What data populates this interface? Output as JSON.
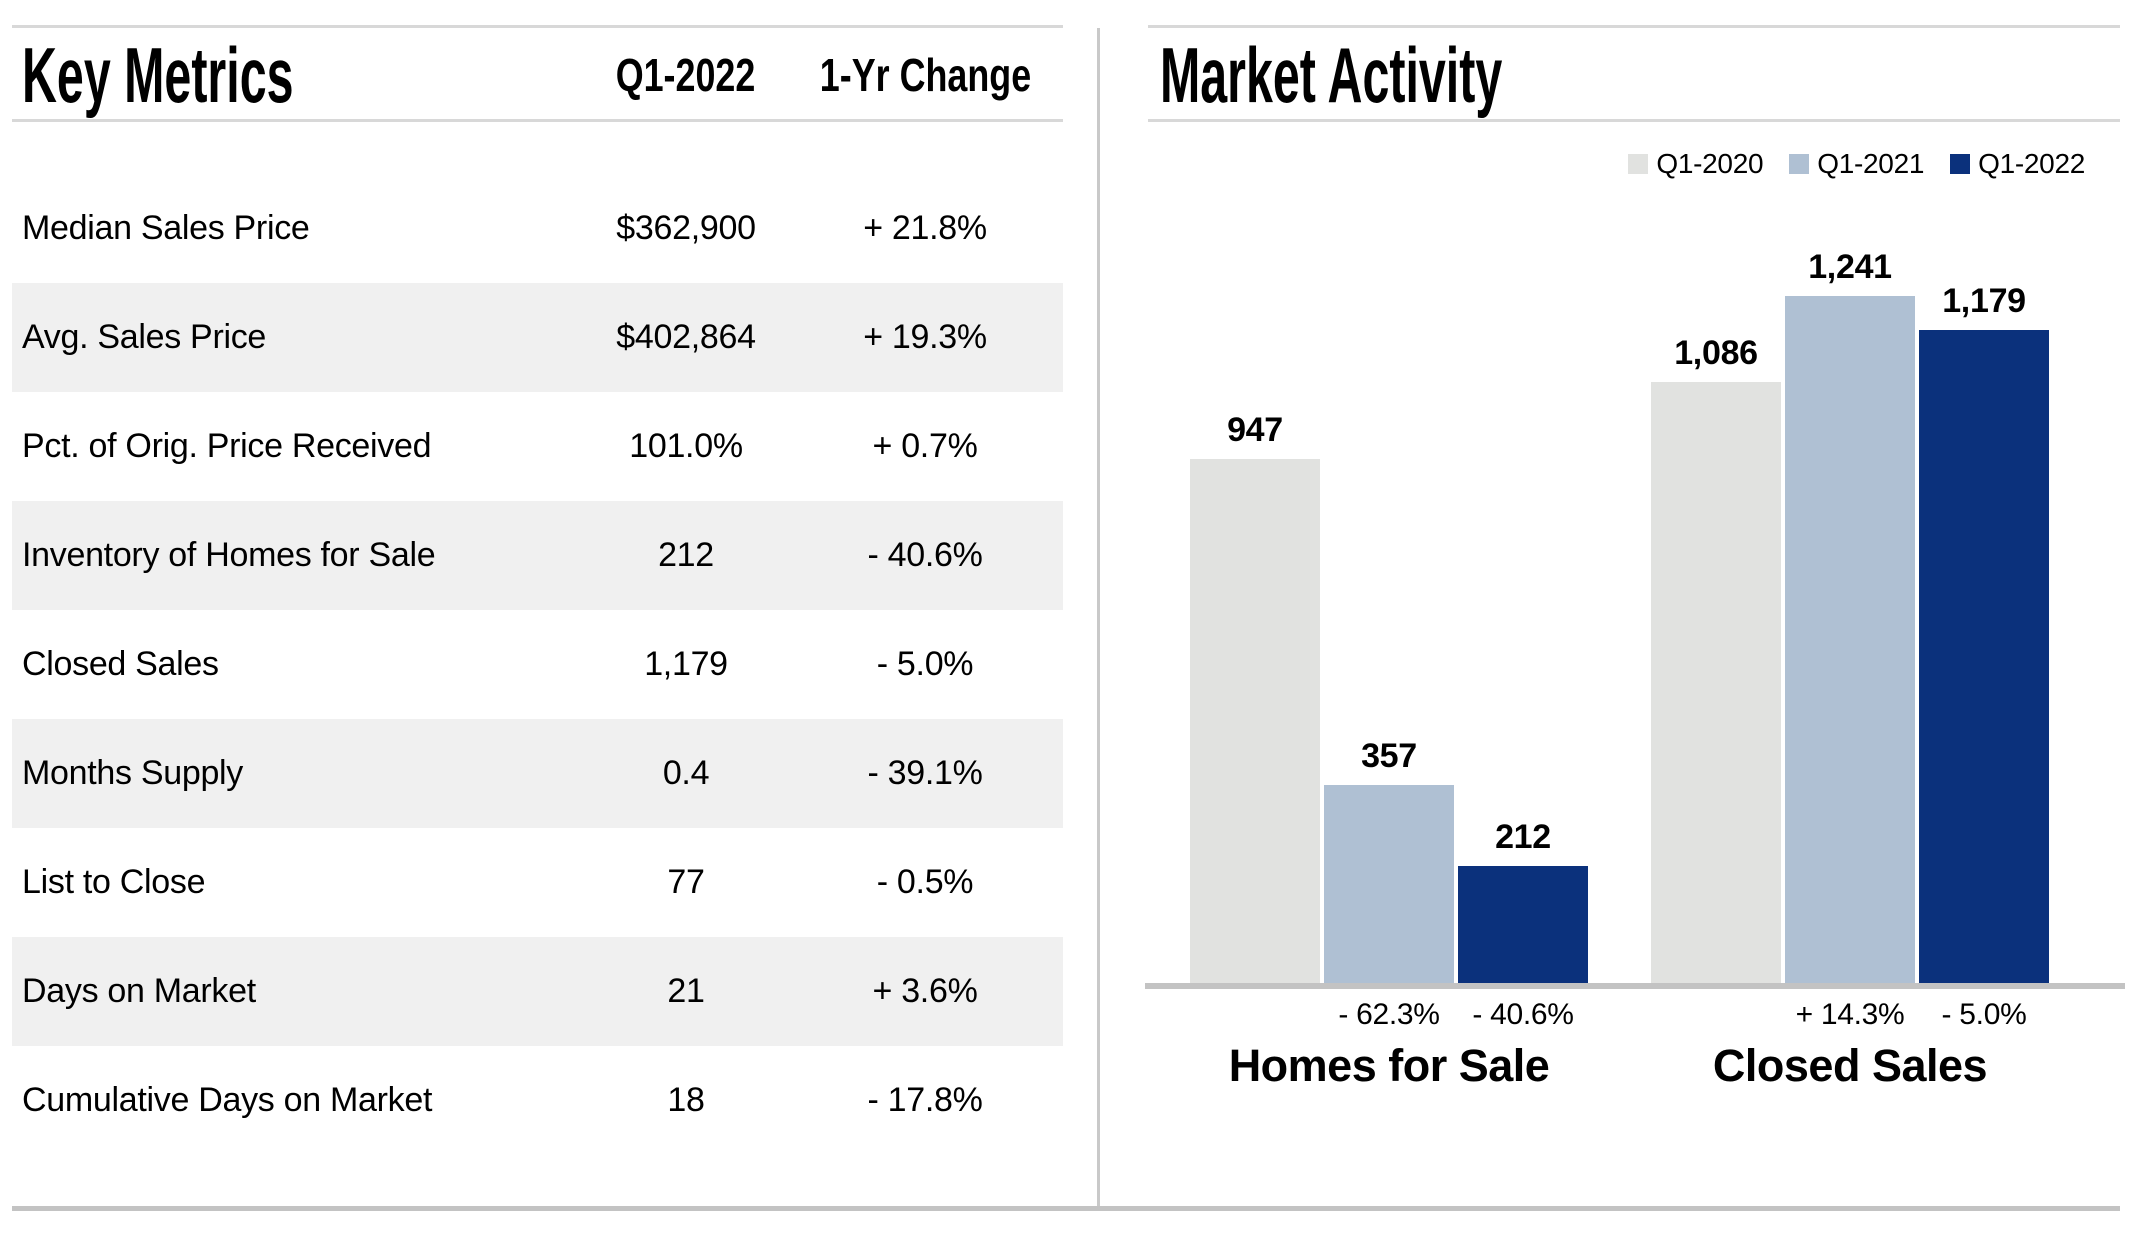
{
  "left_panel": {
    "title": "Key Metrics",
    "columns": [
      "Q1-2022",
      "1-Yr Change"
    ],
    "rows": [
      {
        "label": "Median Sales Price",
        "value": "$362,900",
        "change": "+ 21.8%"
      },
      {
        "label": "Avg. Sales Price",
        "value": "$402,864",
        "change": "+ 19.3%"
      },
      {
        "label": "Pct. of Orig. Price Received",
        "value": "101.0%",
        "change": "+ 0.7%"
      },
      {
        "label": "Inventory of Homes for Sale",
        "value": "212",
        "change": "- 40.6%"
      },
      {
        "label": "Closed Sales",
        "value": "1,179",
        "change": "- 5.0%"
      },
      {
        "label": "Months Supply",
        "value": "0.4",
        "change": "- 39.1%"
      },
      {
        "label": "List to Close",
        "value": "77",
        "change": "- 0.5%"
      },
      {
        "label": "Days on Market",
        "value": "21",
        "change": "+ 3.6%"
      },
      {
        "label": "Cumulative Days on Market",
        "value": "18",
        "change": "- 17.8%"
      }
    ]
  },
  "right_panel": {
    "title": "Market Activity"
  },
  "chart_data": {
    "type": "bar",
    "title": "Market Activity",
    "categories": [
      "Homes for Sale",
      "Closed Sales"
    ],
    "series": [
      {
        "name": "Q1-2020",
        "color": "#e1e2e0",
        "values": [
          947,
          1086
        ],
        "changes": [
          null,
          null
        ]
      },
      {
        "name": "Q1-2021",
        "color": "#afc0d3",
        "values": [
          357,
          1241
        ],
        "changes": [
          "- 62.3%",
          "+ 14.3%"
        ]
      },
      {
        "name": "Q1-2022",
        "color": "#0b317c",
        "values": [
          212,
          1179
        ],
        "changes": [
          "- 40.6%",
          "- 5.0%"
        ]
      }
    ],
    "value_labels": [
      "947",
      "357",
      "212",
      "1,086",
      "1,241",
      "1,179"
    ],
    "ylim": [
      0,
      1300
    ],
    "grid": false,
    "legend_position": "top-right",
    "axis_baseline": "x-only"
  }
}
